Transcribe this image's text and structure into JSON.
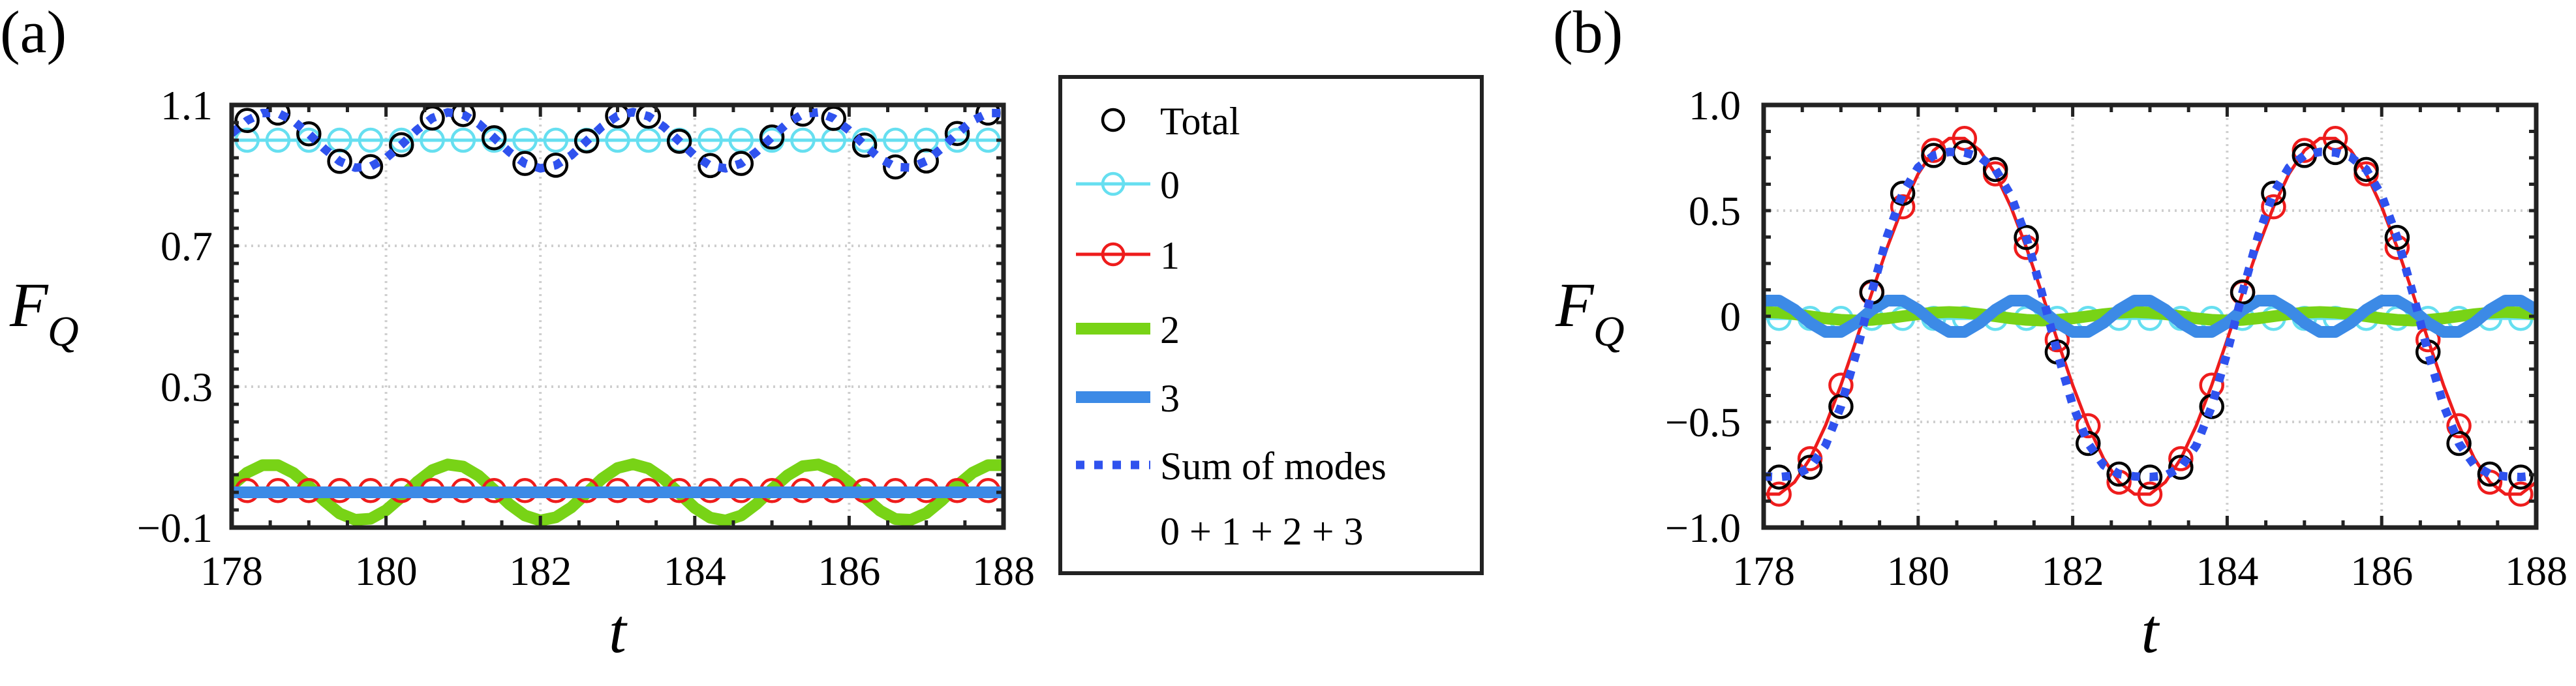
{
  "chart_data": [
    {
      "type": "line",
      "panel_label": "(a)",
      "xlabel": "t",
      "ylabel": "F",
      "ylabel_sub": "Q",
      "xlim": [
        178,
        188
      ],
      "ylim": [
        -0.1,
        1.1
      ],
      "xticks": [
        "178",
        "180",
        "182",
        "184",
        "186",
        "188"
      ],
      "yticks": [
        "1.1",
        "0.7",
        "0.3",
        "−0.1"
      ],
      "ytick_values": [
        1.1,
        0.7,
        0.3,
        -0.1
      ],
      "grid": true,
      "x": [
        178.0,
        178.2,
        178.4,
        178.6,
        178.8,
        179.0,
        179.2,
        179.4,
        179.6,
        179.8,
        180.0,
        180.2,
        180.4,
        180.6,
        180.8,
        181.0,
        181.2,
        181.4,
        181.6,
        181.8,
        182.0,
        182.2,
        182.4,
        182.6,
        182.8,
        183.0,
        183.2,
        183.4,
        183.6,
        183.8,
        184.0,
        184.2,
        184.4,
        184.6,
        184.8,
        185.0,
        185.2,
        185.4,
        185.6,
        185.8,
        186.0,
        186.2,
        186.4,
        186.6,
        186.8,
        187.0,
        187.2,
        187.4,
        187.6,
        187.8,
        188.0
      ],
      "series": [
        {
          "name": "Total",
          "values": [
            1.019,
            1.056,
            1.077,
            1.077,
            1.055,
            1.018,
            0.976,
            0.94,
            0.922,
            0.925,
            0.949,
            0.987,
            1.029,
            1.063,
            1.079,
            1.073,
            1.047,
            1.007,
            0.966,
            0.934,
            0.92,
            0.929,
            0.957,
            0.998,
            1.039,
            1.069,
            1.08,
            1.068,
            1.038,
            0.997,
            0.956,
            0.928,
            0.92,
            0.934,
            0.967,
            1.009,
            1.048,
            1.074,
            1.079,
            1.062,
            1.028,
            0.986,
            0.948,
            0.924,
            0.922,
            0.941,
            0.977,
            1.019,
            1.056,
            1.077,
            1.077
          ]
        },
        {
          "name": "0",
          "values": [
            1,
            1,
            1,
            1,
            1,
            1,
            1,
            1,
            1,
            1,
            1,
            1,
            1,
            1,
            1,
            1,
            1,
            1,
            1,
            1,
            1,
            1,
            1,
            1,
            1,
            1,
            1,
            1,
            1,
            1,
            1,
            1,
            1,
            1,
            1,
            1,
            1,
            1,
            1,
            1,
            1,
            1,
            1,
            1,
            1,
            1,
            1,
            1,
            1,
            1,
            1
          ]
        },
        {
          "name": "1",
          "values": [
            0.005,
            0.005,
            0.005,
            0.005,
            0.005,
            0.005,
            0.005,
            0.005,
            0.005,
            0.005,
            0.005,
            0.005,
            0.005,
            0.005,
            0.005,
            0.005,
            0.005,
            0.005,
            0.005,
            0.005,
            0.005,
            0.005,
            0.005,
            0.005,
            0.005,
            0.005,
            0.005,
            0.005,
            0.005,
            0.005,
            0.005,
            0.005,
            0.005,
            0.005,
            0.005,
            0.005,
            0.005,
            0.005,
            0.005,
            0.005,
            0.005,
            0.005,
            0.005,
            0.005,
            0.005,
            0.005,
            0.005,
            0.005,
            0.005,
            0.005,
            0.005
          ]
        },
        {
          "name": "2",
          "values": [
            0.019,
            0.056,
            0.077,
            0.077,
            0.055,
            0.018,
            -0.024,
            -0.06,
            -0.078,
            -0.075,
            -0.051,
            -0.013,
            0.029,
            0.063,
            0.079,
            0.073,
            0.047,
            0.007,
            -0.034,
            -0.066,
            -0.08,
            -0.071,
            -0.043,
            -0.002,
            0.039,
            0.069,
            0.08,
            0.068,
            0.038,
            -0.003,
            -0.044,
            -0.072,
            -0.08,
            -0.066,
            -0.033,
            0.009,
            0.048,
            0.074,
            0.079,
            0.062,
            0.028,
            -0.014,
            -0.052,
            -0.076,
            -0.078,
            -0.059,
            -0.023,
            0.019,
            0.056,
            0.077,
            0.077
          ]
        },
        {
          "name": "3",
          "values": [
            0,
            0,
            0,
            0,
            0,
            0,
            0,
            0,
            0,
            0,
            0,
            0,
            0,
            0,
            0,
            0,
            0,
            0,
            0,
            0,
            0,
            0,
            0,
            0,
            0,
            0,
            0,
            0,
            0,
            0,
            0,
            0,
            0,
            0,
            0,
            0,
            0,
            0,
            0,
            0,
            0,
            0,
            0,
            0,
            0,
            0,
            0,
            0,
            0,
            0,
            0
          ]
        },
        {
          "name": "Sum of modes 0 + 1 + 2 + 3",
          "values": [
            1.019,
            1.056,
            1.077,
            1.077,
            1.055,
            1.018,
            0.976,
            0.94,
            0.922,
            0.925,
            0.949,
            0.987,
            1.029,
            1.063,
            1.079,
            1.073,
            1.047,
            1.007,
            0.966,
            0.934,
            0.92,
            0.929,
            0.957,
            0.998,
            1.039,
            1.069,
            1.08,
            1.068,
            1.038,
            0.997,
            0.956,
            0.928,
            0.92,
            0.934,
            0.967,
            1.009,
            1.048,
            1.074,
            1.079,
            1.062,
            1.028,
            0.986,
            0.948,
            0.924,
            0.922,
            0.941,
            0.977,
            1.019,
            1.056,
            1.077,
            1.077
          ]
        }
      ]
    },
    {
      "type": "line",
      "panel_label": "(b)",
      "xlabel": "t",
      "ylabel": "F",
      "ylabel_sub": "Q",
      "xlim": [
        178,
        188
      ],
      "ylim": [
        -1.0,
        1.0
      ],
      "xticks": [
        "178",
        "180",
        "182",
        "184",
        "186",
        "188"
      ],
      "yticks": [
        "1.0",
        "0.5",
        "0",
        "−0.5",
        "−1.0"
      ],
      "ytick_values": [
        1.0,
        0.5,
        0,
        -0.5,
        -1.0
      ],
      "grid": true,
      "x": [
        178.0,
        178.2,
        178.4,
        178.6,
        178.8,
        179.0,
        179.2,
        179.4,
        179.6,
        179.8,
        180.0,
        180.2,
        180.4,
        180.6,
        180.8,
        181.0,
        181.2,
        181.4,
        181.6,
        181.8,
        182.0,
        182.2,
        182.4,
        182.6,
        182.8,
        183.0,
        183.2,
        183.4,
        183.6,
        183.8,
        184.0,
        184.2,
        184.4,
        184.6,
        184.8,
        185.0,
        185.2,
        185.4,
        185.6,
        185.8,
        186.0,
        186.2,
        186.4,
        186.6,
        186.8,
        187.0,
        187.2,
        187.4,
        187.6,
        187.8,
        188.0
      ],
      "series": [
        {
          "name": "Total",
          "values": [
            -0.758,
            -0.761,
            -0.754,
            -0.715,
            -0.612,
            -0.427,
            -0.172,
            0.115,
            0.38,
            0.582,
            0.705,
            0.761,
            0.778,
            0.775,
            0.754,
            0.695,
            0.572,
            0.373,
            0.112,
            -0.169,
            -0.42,
            -0.602,
            -0.705,
            -0.747,
            -0.758,
            -0.761,
            -0.754,
            -0.715,
            -0.612,
            -0.427,
            -0.172,
            0.115,
            0.38,
            0.582,
            0.705,
            0.761,
            0.778,
            0.775,
            0.754,
            0.695,
            0.572,
            0.373,
            0.112,
            -0.169,
            -0.42,
            -0.602,
            -0.705,
            -0.747,
            -0.758,
            -0.761,
            -0.754
          ]
        },
        {
          "name": "0",
          "values": [
            -0.01,
            -0.01,
            -0.01,
            -0.01,
            -0.01,
            -0.01,
            -0.01,
            -0.01,
            -0.01,
            -0.01,
            -0.01,
            -0.01,
            -0.01,
            -0.01,
            -0.01,
            -0.01,
            -0.01,
            -0.01,
            -0.01,
            -0.01,
            -0.01,
            -0.01,
            -0.01,
            -0.01,
            -0.01,
            -0.01,
            -0.01,
            -0.01,
            -0.01,
            -0.01,
            -0.01,
            -0.01,
            -0.01,
            -0.01,
            -0.01,
            -0.01,
            -0.01,
            -0.01,
            -0.01,
            -0.01,
            -0.01,
            -0.01,
            -0.01,
            -0.01,
            -0.01,
            -0.01,
            -0.01,
            -0.01,
            -0.01,
            -0.01,
            -0.01
          ]
        },
        {
          "name": "1",
          "values": [
            -0.842,
            -0.842,
            -0.785,
            -0.674,
            -0.518,
            -0.326,
            -0.111,
            0.111,
            0.326,
            0.518,
            0.674,
            0.785,
            0.842,
            0.842,
            0.785,
            0.674,
            0.518,
            0.326,
            0.111,
            -0.111,
            -0.326,
            -0.518,
            -0.674,
            -0.785,
            -0.842,
            -0.842,
            -0.785,
            -0.674,
            -0.518,
            -0.326,
            -0.111,
            0.111,
            0.326,
            0.518,
            0.674,
            0.785,
            0.842,
            0.842,
            0.785,
            0.674,
            0.518,
            0.326,
            0.111,
            -0.111,
            -0.326,
            -0.518,
            -0.674,
            -0.785,
            -0.842,
            -0.842,
            -0.785
          ]
        },
        {
          "name": "2",
          "values": [
            0.02,
            0.017,
            0.01,
            0,
            -0.01,
            -0.017,
            -0.02,
            -0.017,
            -0.01,
            0,
            0.01,
            0.017,
            0.02,
            0.017,
            0.01,
            0,
            -0.01,
            -0.017,
            -0.02,
            -0.017,
            -0.01,
            0,
            0.01,
            0.017,
            0.02,
            0.017,
            0.01,
            0,
            -0.01,
            -0.017,
            -0.02,
            -0.017,
            -0.01,
            0,
            0.01,
            0.017,
            0.02,
            0.017,
            0.01,
            0,
            -0.01,
            -0.017,
            -0.02,
            -0.017,
            -0.01,
            0,
            0.01,
            0.017,
            0.02,
            0.017,
            0.01
          ]
        },
        {
          "name": "3",
          "values": [
            0.074,
            0.074,
            0.031,
            -0.031,
            -0.074,
            -0.074,
            -0.031,
            0.031,
            0.074,
            0.074,
            0.031,
            -0.031,
            -0.074,
            -0.074,
            -0.031,
            0.031,
            0.074,
            0.074,
            0.031,
            -0.031,
            -0.074,
            -0.074,
            -0.031,
            0.031,
            0.074,
            0.074,
            0.031,
            -0.031,
            -0.074,
            -0.074,
            -0.031,
            0.031,
            0.074,
            0.074,
            0.031,
            -0.031,
            -0.074,
            -0.074,
            -0.031,
            0.031,
            0.074,
            0.074,
            0.031,
            -0.031,
            -0.074,
            -0.074,
            -0.031,
            0.031,
            0.074,
            0.074,
            0.031
          ]
        },
        {
          "name": "Sum of modes 0 + 1 + 2 + 3",
          "values": [
            -0.758,
            -0.761,
            -0.754,
            -0.715,
            -0.612,
            -0.427,
            -0.172,
            0.115,
            0.38,
            0.582,
            0.705,
            0.761,
            0.778,
            0.775,
            0.754,
            0.695,
            0.572,
            0.373,
            0.112,
            -0.169,
            -0.42,
            -0.602,
            -0.705,
            -0.747,
            -0.758,
            -0.761,
            -0.754,
            -0.715,
            -0.612,
            -0.427,
            -0.172,
            0.115,
            0.38,
            0.582,
            0.705,
            0.761,
            0.778,
            0.775,
            0.754,
            0.695,
            0.572,
            0.373,
            0.112,
            -0.169,
            -0.42,
            -0.602,
            -0.705,
            -0.747,
            -0.758,
            -0.761,
            -0.754
          ]
        }
      ]
    }
  ],
  "legend": {
    "placement": "between panels",
    "entries": [
      {
        "label": "Total",
        "color": "#000000",
        "style": "circle-markers"
      },
      {
        "label": "0",
        "color": "#66dff0",
        "style": "line-circles"
      },
      {
        "label": "1",
        "color": "#ee1c1c",
        "style": "line-circles"
      },
      {
        "label": "2",
        "color": "#78d316",
        "style": "thick-line"
      },
      {
        "label": "3",
        "color": "#3c8ae6",
        "style": "thick-line"
      },
      {
        "label": "Sum of modes",
        "label2": "0 + 1 + 2 + 3",
        "color": "#2f52ee",
        "style": "dotted-line"
      }
    ]
  }
}
